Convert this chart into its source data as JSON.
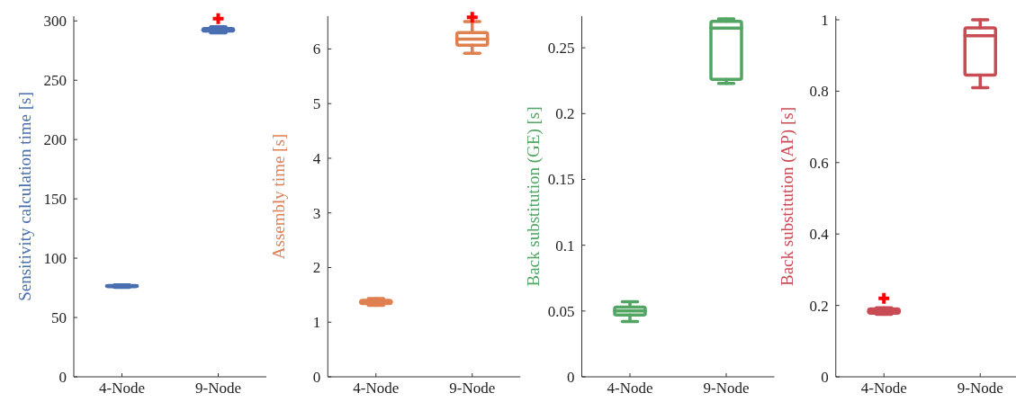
{
  "chart_data": [
    {
      "type": "box",
      "ylabel": "Sensitivity calculation time [s]",
      "categories": [
        "4-Node",
        "9-Node"
      ],
      "ylim": [
        0,
        304
      ],
      "yticks": [
        0,
        50,
        100,
        150,
        200,
        250,
        300
      ],
      "grid": false,
      "series": [
        {
          "color": "#4a6fb0",
          "boxes": [
            {
              "low": 75.5,
              "q1": 76,
              "median": 76.5,
              "q3": 77,
              "high": 77.5
            },
            {
              "low": 290,
              "q1": 291.5,
              "median": 292.5,
              "q3": 293.5,
              "high": 295,
              "outliers": [
                302
              ]
            }
          ]
        }
      ]
    },
    {
      "type": "box",
      "ylabel": "Assembly time [s]",
      "categories": [
        "4-Node",
        "9-Node"
      ],
      "ylim": [
        0,
        6.6
      ],
      "yticks": [
        0,
        1,
        2,
        3,
        4,
        5,
        6
      ],
      "grid": false,
      "series": [
        {
          "color": "#e07f50",
          "boxes": [
            {
              "low": 1.31,
              "q1": 1.34,
              "median": 1.37,
              "q3": 1.4,
              "high": 1.43
            },
            {
              "low": 5.92,
              "q1": 6.07,
              "median": 6.18,
              "q3": 6.3,
              "high": 6.5,
              "outliers": [
                6.58
              ]
            }
          ]
        }
      ]
    },
    {
      "type": "box",
      "ylabel": "Back substitution (GE) [s]",
      "categories": [
        "4-Node",
        "9-Node"
      ],
      "ylim": [
        0,
        0.274
      ],
      "yticks": [
        0,
        0.05,
        0.1,
        0.15,
        0.2,
        0.25
      ],
      "grid": false,
      "series": [
        {
          "color": "#52a563",
          "boxes": [
            {
              "low": 0.042,
              "q1": 0.047,
              "median": 0.05,
              "q3": 0.053,
              "high": 0.057
            },
            {
              "low": 0.223,
              "q1": 0.226,
              "median": 0.265,
              "q3": 0.27,
              "high": 0.272
            }
          ]
        }
      ]
    },
    {
      "type": "box",
      "ylabel": "Back substitution (AP) [s]",
      "categories": [
        "4-Node",
        "9-Node"
      ],
      "ylim": [
        0,
        1.01
      ],
      "yticks": [
        0,
        0.2,
        0.4,
        0.6,
        0.8,
        1
      ],
      "grid": false,
      "series": [
        {
          "color": "#c94c55",
          "boxes": [
            {
              "low": 0.175,
              "q1": 0.178,
              "median": 0.183,
              "q3": 0.19,
              "high": 0.193,
              "outliers": [
                0.22
              ]
            },
            {
              "low": 0.81,
              "q1": 0.845,
              "median": 0.955,
              "q3": 0.977,
              "high": 1.0
            }
          ]
        }
      ]
    }
  ]
}
